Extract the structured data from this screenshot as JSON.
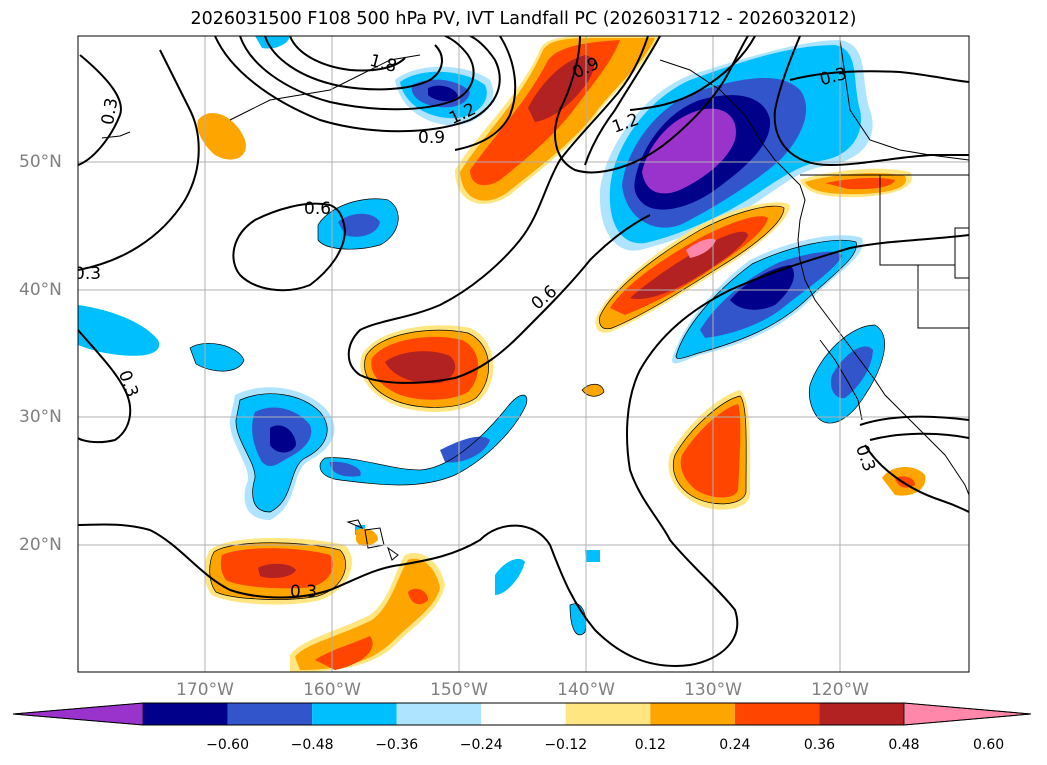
{
  "title": "2026031500 F108 500 hPa PV, IVT Landfall PC (2026031712 - 2026032012)",
  "map": {
    "lat_labels": [
      "50°N",
      "40°N",
      "30°N",
      "20°N"
    ],
    "lon_labels": [
      "170°W",
      "160°W",
      "150°W",
      "140°W",
      "130°W",
      "120°W"
    ],
    "contour_labels": [
      "0.3",
      "0.9",
      "1.2",
      "1.8",
      "0.6",
      "0.3",
      "0.6",
      "0.3",
      "0.3",
      "0.9",
      "1.2",
      "0.3",
      "0.3"
    ]
  },
  "colorbar": {
    "ticks": [
      "−0.60",
      "−0.48",
      "−0.36",
      "−0.24",
      "−0.12",
      "0.12",
      "0.24",
      "0.36",
      "0.48",
      "0.60"
    ],
    "colors": [
      "#9933cc",
      "#00008b",
      "#3355cc",
      "#00bfff",
      "#aee4ff",
      "#ffffff",
      "#ffe680",
      "#ffa500",
      "#ff4500",
      "#b22222",
      "#ff88aa"
    ]
  }
}
